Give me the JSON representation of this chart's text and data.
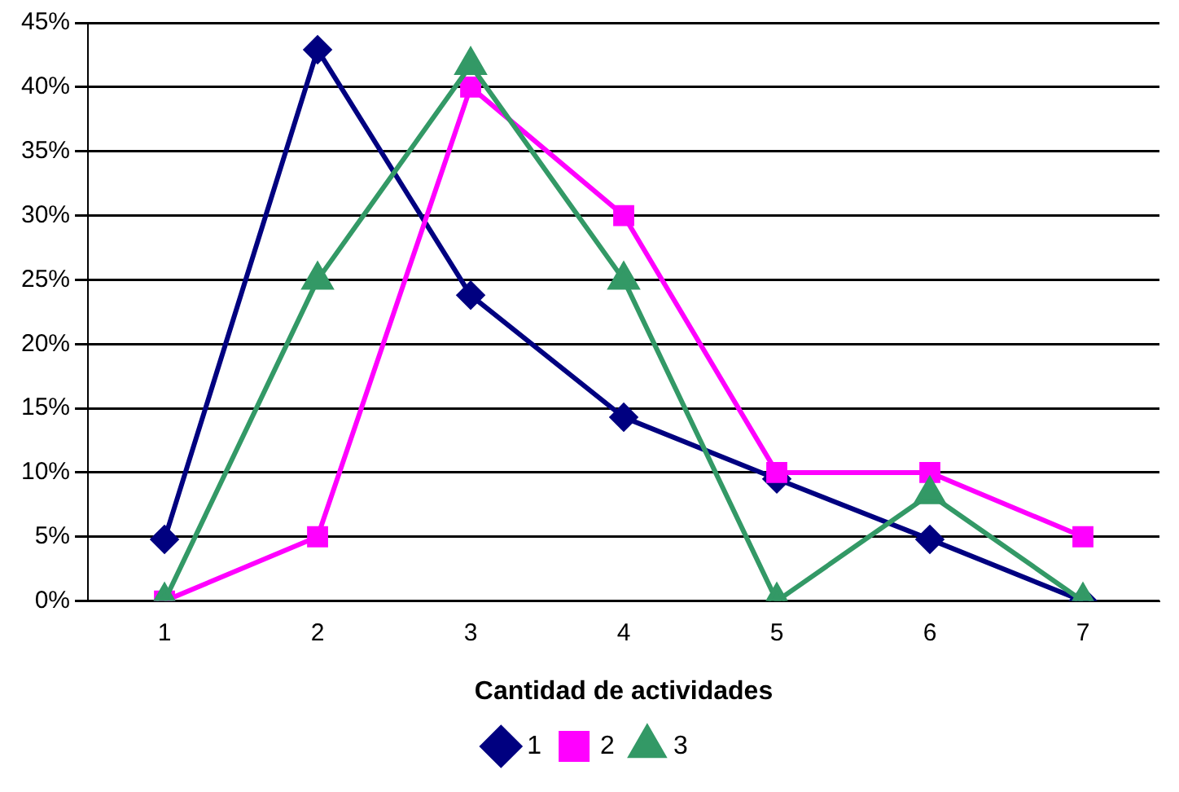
{
  "chart_data": {
    "type": "line",
    "xlabel": "Cantidad de actividades",
    "categories": [
      "1",
      "2",
      "3",
      "4",
      "5",
      "6",
      "7"
    ],
    "series": [
      {
        "name": "1",
        "color": "#000080",
        "marker": "diamond",
        "values": [
          4.8,
          42.9,
          23.8,
          14.3,
          9.5,
          4.8,
          0
        ]
      },
      {
        "name": "2",
        "color": "#ff00ff",
        "marker": "square",
        "values": [
          0,
          5,
          40,
          30,
          10,
          10,
          5
        ]
      },
      {
        "name": "3",
        "color": "#339966",
        "marker": "triangle",
        "values": [
          0,
          25,
          41.7,
          25,
          0,
          8.3,
          0
        ]
      }
    ],
    "ylim": [
      0,
      45
    ],
    "yticks": [
      {
        "value": 0,
        "label": "0%"
      },
      {
        "value": 5,
        "label": "5%"
      },
      {
        "value": 10,
        "label": "10%"
      },
      {
        "value": 15,
        "label": "15%"
      },
      {
        "value": 20,
        "label": "20%"
      },
      {
        "value": 25,
        "label": "25%"
      },
      {
        "value": 30,
        "label": "30%"
      },
      {
        "value": 35,
        "label": "35%"
      },
      {
        "value": 40,
        "label": "40%"
      },
      {
        "value": 45,
        "label": "45%"
      }
    ],
    "grid": "y",
    "legend": "bottom",
    "line_style": "solid"
  }
}
